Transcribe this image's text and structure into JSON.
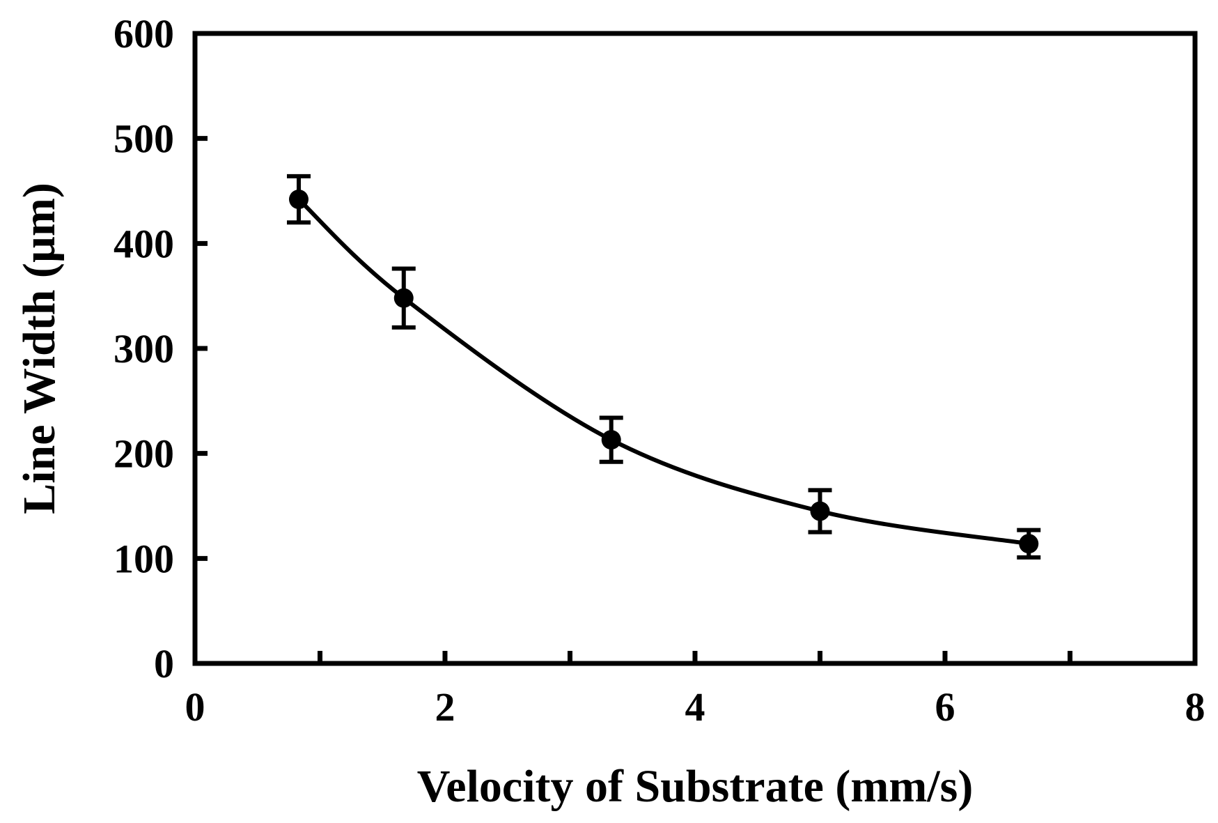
{
  "chart_data": {
    "type": "scatter",
    "title": "",
    "xlabel": "Velocity of Substrate (mm/s)",
    "ylabel": "Line Width (µm)",
    "xlim": [
      0,
      8
    ],
    "ylim": [
      0,
      600
    ],
    "x_ticks": [
      0,
      2,
      4,
      6,
      8
    ],
    "x_minor_ticks": [
      1,
      3,
      5,
      7
    ],
    "y_ticks": [
      0,
      100,
      200,
      300,
      400,
      500,
      600
    ],
    "x_tick_labels": [
      "0",
      "2",
      "4",
      "6",
      "8"
    ],
    "y_tick_labels": [
      "0",
      "100",
      "200",
      "300",
      "400",
      "500",
      "600"
    ],
    "grid": false,
    "legend": "none",
    "series": [
      {
        "x": [
          0.83,
          1.67,
          3.33,
          5.0,
          6.67
        ],
        "y": [
          442,
          348,
          213,
          145,
          114
        ],
        "yerr": [
          22,
          28,
          21,
          20,
          13
        ],
        "fit_line": true,
        "color": "#000000"
      }
    ]
  }
}
